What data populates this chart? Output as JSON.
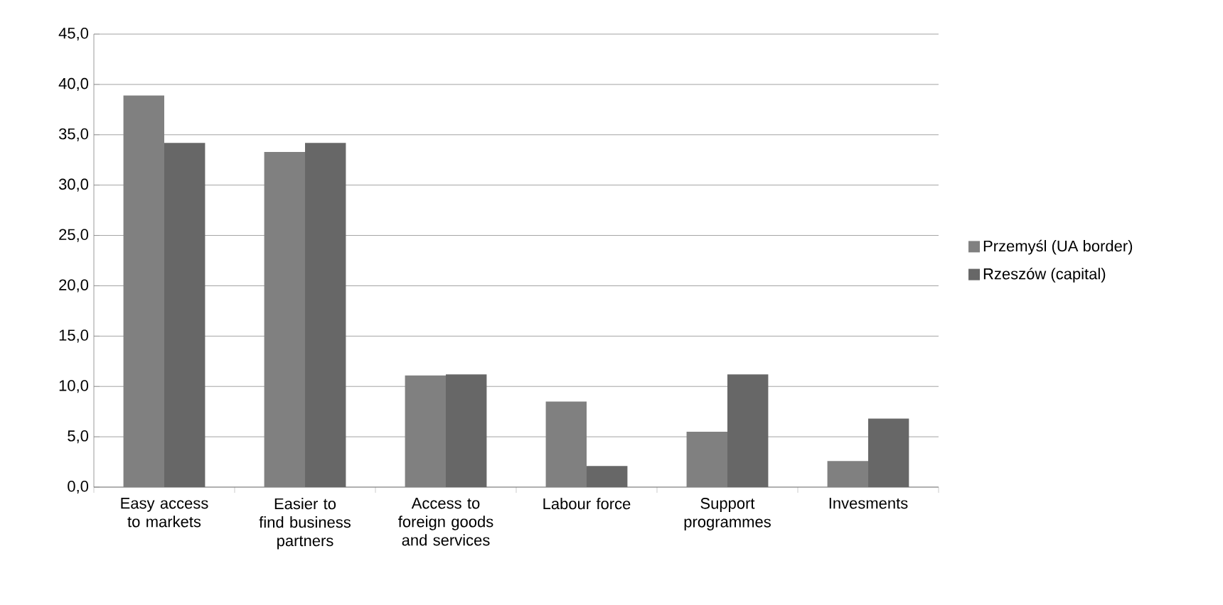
{
  "chart_data": {
    "type": "bar",
    "categories": [
      "Easy access to markets",
      "Easier to find business partners",
      "Access to foreign goods and services",
      "Labour force",
      "Support programmes",
      "Invesments"
    ],
    "series": [
      {
        "name": "Przemyśl (UA border)",
        "color": "#808080",
        "values": [
          38.9,
          33.3,
          11.1,
          8.5,
          5.5,
          2.6
        ]
      },
      {
        "name": "Rzeszów (capital)",
        "color": "#676767",
        "values": [
          34.2,
          34.2,
          11.2,
          2.1,
          11.2,
          6.8
        ]
      }
    ],
    "ylim": [
      0,
      45
    ],
    "yticks": [
      {
        "value": 0,
        "label": "0,0"
      },
      {
        "value": 5,
        "label": "5,0"
      },
      {
        "value": 10,
        "label": "10,0"
      },
      {
        "value": 15,
        "label": "15,0"
      },
      {
        "value": 20,
        "label": "20,0"
      },
      {
        "value": 25,
        "label": "25,0"
      },
      {
        "value": 30,
        "label": "30,0"
      },
      {
        "value": 35,
        "label": "35,0"
      },
      {
        "value": 40,
        "label": "40,0"
      },
      {
        "value": 45,
        "label": "45,0"
      }
    ],
    "grid": "y",
    "legend": "right"
  }
}
